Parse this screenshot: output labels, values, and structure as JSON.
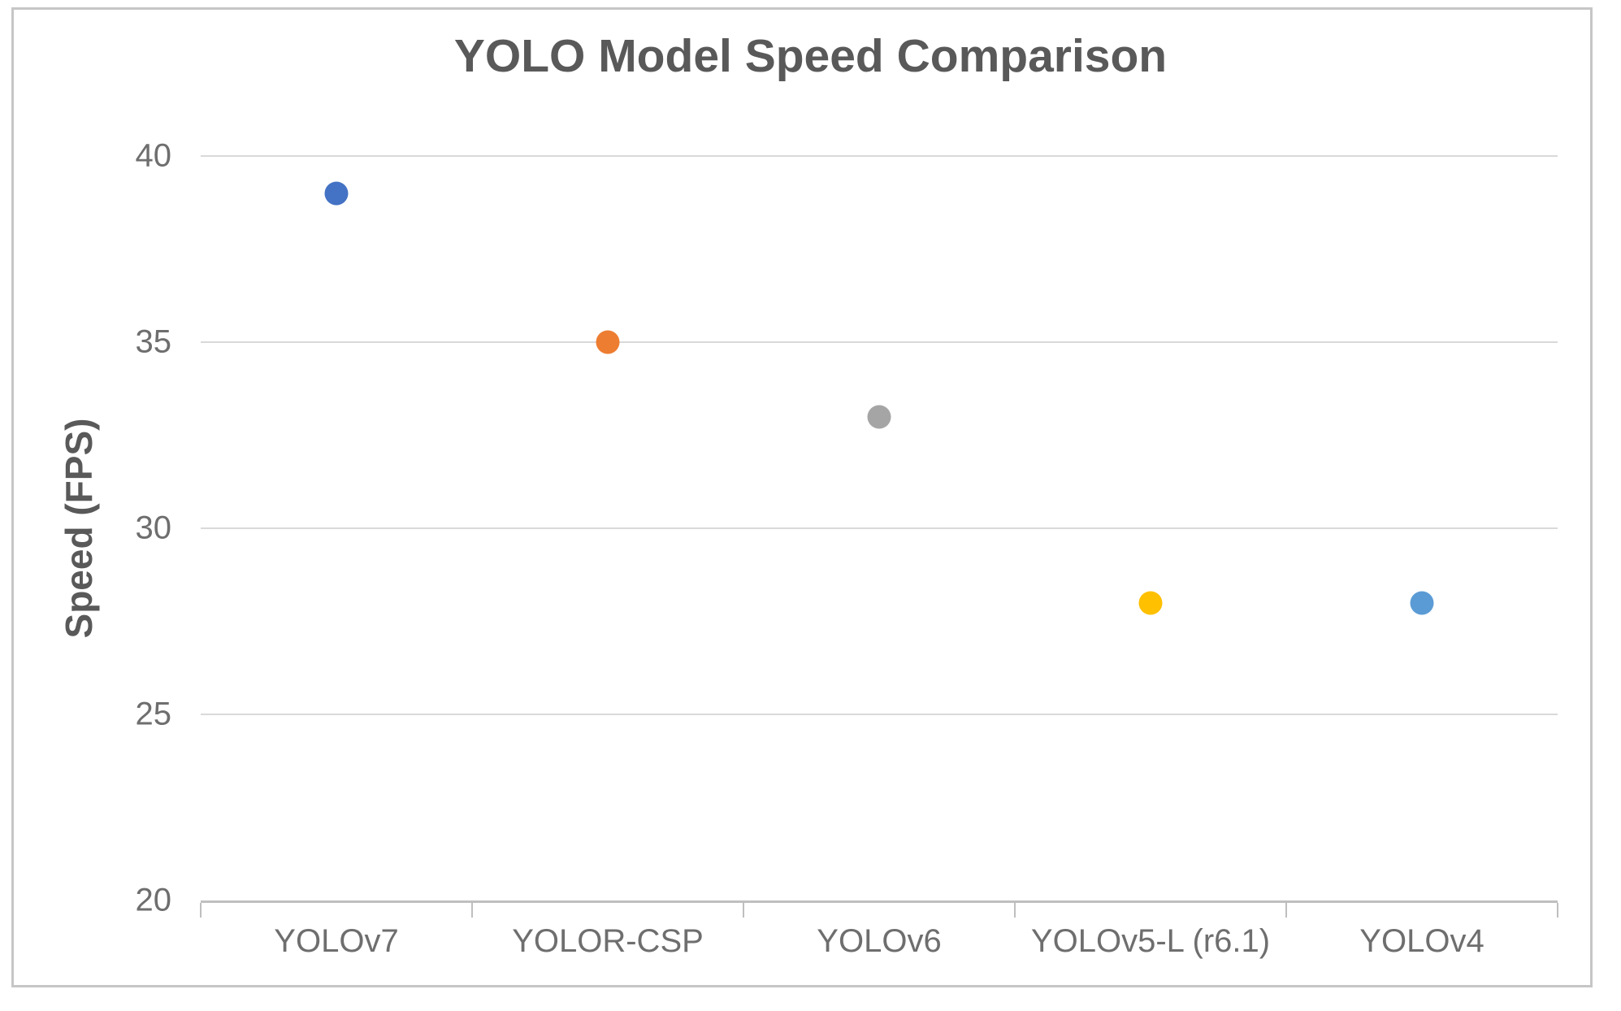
{
  "chart_data": {
    "type": "scatter",
    "title": "YOLO Model Speed Comparison",
    "xlabel": "",
    "ylabel": "Speed (FPS)",
    "categories": [
      "YOLOv7",
      "YOLOR-CSP",
      "YOLOv6",
      "YOLOv5-L (r6.1)",
      "YOLOv4"
    ],
    "values": [
      39,
      35,
      33,
      28,
      28
    ],
    "point_colors": [
      "#4472C4",
      "#ED7D31",
      "#A5A5A5",
      "#FFC000",
      "#5B9BD5"
    ],
    "ylim": [
      20,
      40
    ],
    "yticks": [
      40,
      35,
      30,
      25,
      20
    ],
    "grid": true,
    "legend_position": "none"
  },
  "colors": {
    "title_text": "#595959",
    "tick_text": "#6e6e6e",
    "gridline": "#d9d9d9",
    "axis_line": "#bfbfbf",
    "frame_border": "#c6c6c6",
    "background": "#ffffff"
  }
}
